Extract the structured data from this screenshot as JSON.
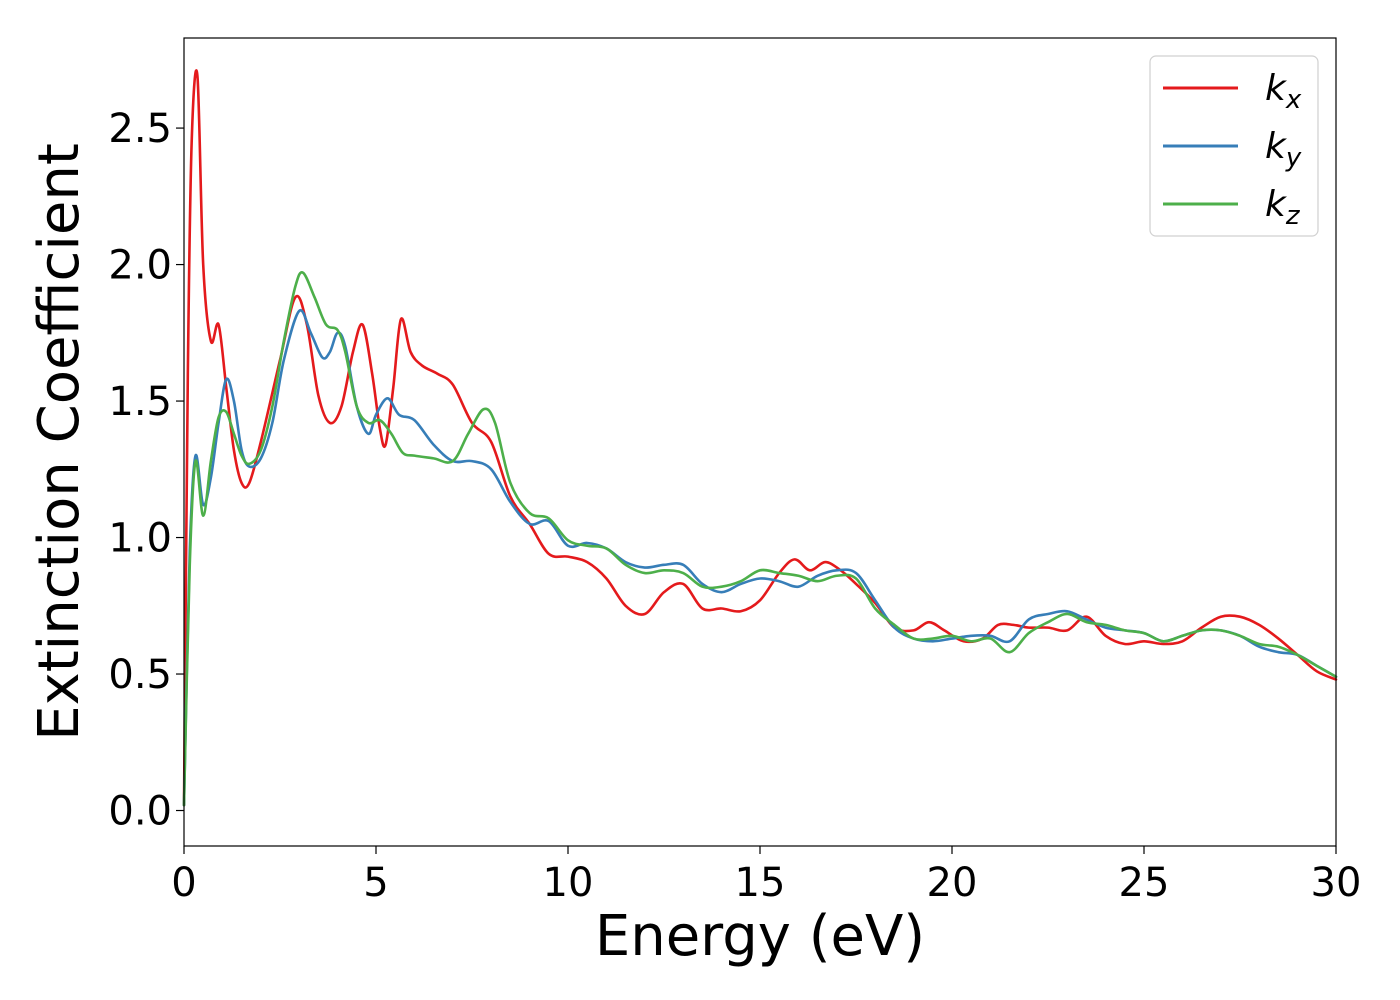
{
  "chart_data": {
    "type": "line",
    "xlabel": "Energy (eV)",
    "ylabel": "Extinction Coefficient",
    "xlim": [
      0,
      30
    ],
    "ylim": [
      -0.13,
      2.83
    ],
    "xticks": [
      0,
      5,
      10,
      15,
      20,
      25,
      30
    ],
    "yticks": [
      0.0,
      0.5,
      1.0,
      1.5,
      2.0,
      2.5
    ],
    "grid": false,
    "legend_position": "top-right",
    "series": [
      {
        "name": "k_x",
        "label_main": "k",
        "label_sub": "x",
        "color": "#e41a1c",
        "x": [
          0,
          0.1,
          0.2,
          0.35,
          0.5,
          0.7,
          0.9,
          1.1,
          1.3,
          1.5,
          1.7,
          2.0,
          2.5,
          2.9,
          3.2,
          3.5,
          3.8,
          4.1,
          4.4,
          4.65,
          4.9,
          5.1,
          5.25,
          5.45,
          5.65,
          5.9,
          6.2,
          6.6,
          7.0,
          7.5,
          8.0,
          8.5,
          9.0,
          9.5,
          10.0,
          10.5,
          11.0,
          11.5,
          12.0,
          12.5,
          13.0,
          13.5,
          14.0,
          14.5,
          15.0,
          15.5,
          15.9,
          16.3,
          16.7,
          17.1,
          17.5,
          18.0,
          18.5,
          19.0,
          19.4,
          19.8,
          20.3,
          20.8,
          21.2,
          21.6,
          22.0,
          22.5,
          23.0,
          23.5,
          24.0,
          24.5,
          25.0,
          25.5,
          26.0,
          26.5,
          27.0,
          27.5,
          28.0,
          28.5,
          29.0,
          29.5,
          30.0
        ],
        "y": [
          0.02,
          1.6,
          2.45,
          2.69,
          2.0,
          1.72,
          1.78,
          1.55,
          1.32,
          1.2,
          1.2,
          1.35,
          1.65,
          1.88,
          1.78,
          1.52,
          1.42,
          1.48,
          1.68,
          1.78,
          1.6,
          1.4,
          1.34,
          1.55,
          1.8,
          1.68,
          1.63,
          1.6,
          1.56,
          1.42,
          1.35,
          1.15,
          1.05,
          0.94,
          0.93,
          0.91,
          0.85,
          0.75,
          0.72,
          0.8,
          0.83,
          0.74,
          0.74,
          0.73,
          0.77,
          0.87,
          0.92,
          0.88,
          0.91,
          0.88,
          0.83,
          0.76,
          0.67,
          0.66,
          0.69,
          0.66,
          0.62,
          0.63,
          0.68,
          0.68,
          0.67,
          0.67,
          0.66,
          0.71,
          0.64,
          0.61,
          0.62,
          0.61,
          0.62,
          0.67,
          0.71,
          0.71,
          0.68,
          0.63,
          0.57,
          0.51,
          0.48
        ]
      },
      {
        "name": "k_y",
        "label_main": "k",
        "label_sub": "y",
        "color": "#377eb8",
        "x": [
          0,
          0.15,
          0.3,
          0.5,
          0.7,
          0.9,
          1.1,
          1.3,
          1.5,
          1.7,
          2.0,
          2.3,
          2.6,
          3.0,
          3.3,
          3.6,
          3.8,
          4.0,
          4.2,
          4.5,
          4.8,
          5.0,
          5.3,
          5.6,
          6.0,
          6.5,
          7.0,
          7.5,
          8.0,
          8.5,
          9.0,
          9.5,
          10.0,
          10.5,
          11.0,
          11.5,
          12.0,
          12.5,
          13.0,
          13.5,
          14.0,
          14.5,
          15.0,
          15.5,
          16.0,
          16.5,
          17.0,
          17.5,
          18.0,
          18.5,
          19.0,
          19.5,
          20.0,
          20.5,
          21.0,
          21.5,
          22.0,
          22.5,
          23.0,
          23.5,
          24.0,
          24.5,
          25.0,
          25.5,
          26.0,
          26.5,
          27.0,
          27.5,
          28.0,
          28.5,
          29.0,
          29.5,
          30.0
        ],
        "y": [
          0.02,
          0.95,
          1.3,
          1.12,
          1.22,
          1.42,
          1.58,
          1.5,
          1.32,
          1.26,
          1.29,
          1.42,
          1.65,
          1.83,
          1.75,
          1.66,
          1.68,
          1.75,
          1.7,
          1.48,
          1.38,
          1.45,
          1.51,
          1.45,
          1.43,
          1.34,
          1.28,
          1.28,
          1.25,
          1.13,
          1.05,
          1.06,
          0.97,
          0.98,
          0.96,
          0.91,
          0.89,
          0.9,
          0.9,
          0.83,
          0.8,
          0.83,
          0.85,
          0.84,
          0.82,
          0.86,
          0.88,
          0.87,
          0.77,
          0.67,
          0.63,
          0.62,
          0.63,
          0.64,
          0.64,
          0.62,
          0.7,
          0.72,
          0.73,
          0.7,
          0.67,
          0.66,
          0.65,
          0.62,
          0.64,
          0.66,
          0.66,
          0.64,
          0.6,
          0.58,
          0.57,
          0.53,
          0.49
        ]
      },
      {
        "name": "k_z",
        "label_main": "k",
        "label_sub": "z",
        "color": "#4daf4a",
        "x": [
          0,
          0.15,
          0.3,
          0.5,
          0.7,
          0.9,
          1.1,
          1.3,
          1.5,
          1.7,
          2.0,
          2.3,
          2.6,
          2.9,
          3.1,
          3.4,
          3.7,
          4.0,
          4.2,
          4.5,
          4.8,
          5.1,
          5.4,
          5.7,
          6.0,
          6.5,
          7.0,
          7.4,
          7.8,
          8.1,
          8.5,
          9.0,
          9.5,
          10.0,
          10.5,
          11.0,
          11.5,
          12.0,
          12.5,
          13.0,
          13.5,
          14.0,
          14.5,
          15.0,
          15.5,
          16.0,
          16.5,
          17.0,
          17.5,
          18.0,
          18.5,
          19.0,
          19.5,
          20.0,
          20.5,
          21.0,
          21.5,
          22.0,
          22.5,
          23.0,
          23.5,
          24.0,
          24.5,
          25.0,
          25.5,
          26.0,
          26.5,
          27.0,
          27.5,
          28.0,
          28.5,
          29.0,
          29.5,
          30.0
        ],
        "y": [
          0.02,
          0.9,
          1.28,
          1.08,
          1.28,
          1.44,
          1.46,
          1.38,
          1.3,
          1.27,
          1.32,
          1.48,
          1.72,
          1.92,
          1.97,
          1.88,
          1.78,
          1.76,
          1.68,
          1.48,
          1.42,
          1.43,
          1.38,
          1.31,
          1.3,
          1.29,
          1.28,
          1.38,
          1.47,
          1.42,
          1.2,
          1.09,
          1.07,
          0.99,
          0.97,
          0.96,
          0.9,
          0.87,
          0.88,
          0.87,
          0.82,
          0.82,
          0.84,
          0.88,
          0.87,
          0.86,
          0.84,
          0.86,
          0.85,
          0.74,
          0.68,
          0.63,
          0.63,
          0.64,
          0.62,
          0.63,
          0.58,
          0.65,
          0.69,
          0.72,
          0.69,
          0.68,
          0.66,
          0.65,
          0.62,
          0.64,
          0.66,
          0.66,
          0.64,
          0.61,
          0.6,
          0.57,
          0.53,
          0.49
        ]
      }
    ]
  }
}
